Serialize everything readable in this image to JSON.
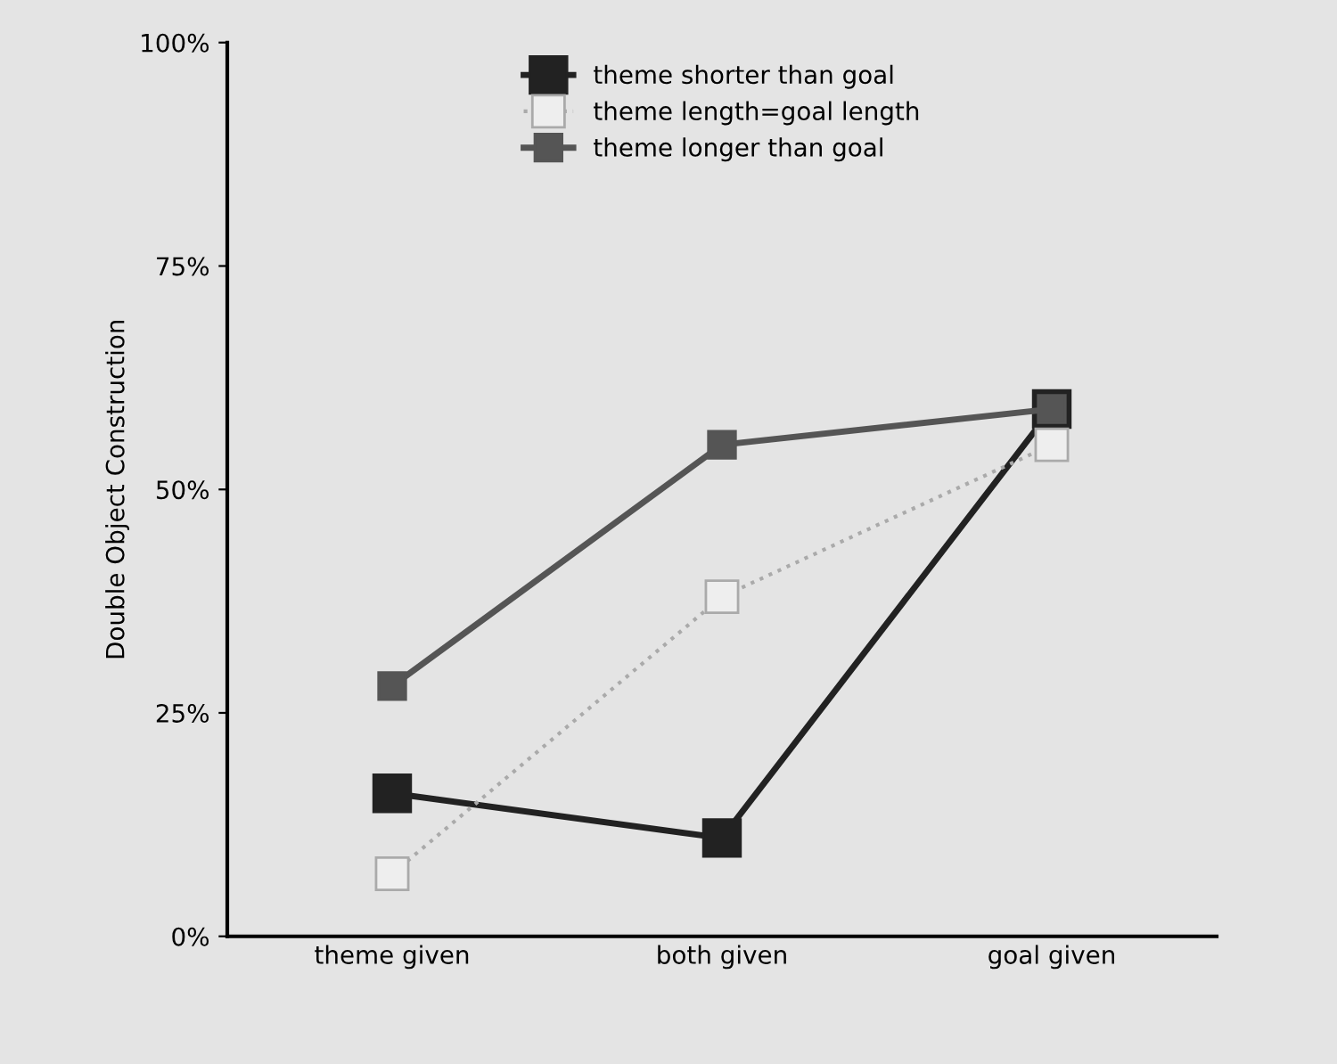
{
  "chart_data": {
    "type": "line",
    "ylabel": "Double Object Construction",
    "categories": [
      "theme given",
      "both given",
      "goal given"
    ],
    "series": [
      {
        "name": "theme shorter than goal",
        "color": "#222222",
        "values": [
          16,
          11,
          59
        ],
        "marker": "square",
        "line_style": "solid"
      },
      {
        "name": "theme length=goal length",
        "color": "#aaaaaa",
        "values": [
          7,
          38,
          55
        ],
        "marker": "square",
        "line_style": "dotted"
      },
      {
        "name": "theme longer than goal",
        "color": "#555555",
        "values": [
          28,
          55,
          59
        ],
        "marker": "square",
        "line_style": "solid"
      }
    ],
    "ylim": [
      0,
      100
    ],
    "yticks": [
      {
        "value": 0,
        "label": "0%"
      },
      {
        "value": 25,
        "label": "25%"
      },
      {
        "value": 50,
        "label": "50%"
      },
      {
        "value": 75,
        "label": "75%"
      },
      {
        "value": 100,
        "label": "100%"
      }
    ],
    "grid": false,
    "legend": "top"
  }
}
